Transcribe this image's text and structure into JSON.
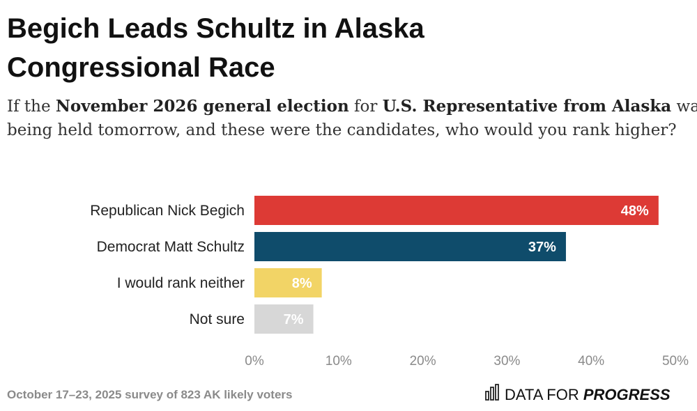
{
  "chart_data": {
    "type": "bar",
    "orientation": "horizontal",
    "title_lines": [
      "Begich Leads Schultz in Alaska",
      "Congressional Race"
    ],
    "subtitle_lines": [
      [
        {
          "text": "If the ",
          "bold": false
        },
        {
          "text": "November 2026 general election",
          "bold": true
        },
        {
          "text": " for ",
          "bold": false
        },
        {
          "text": "U.S. Representative from Alaska",
          "bold": true
        },
        {
          "text": " was",
          "bold": false
        }
      ],
      [
        {
          "text": "being held tomorrow, and these were the candidates, who would you rank higher?",
          "bold": false
        }
      ]
    ],
    "categories": [
      "Republican Nick Begich",
      "Democrat Matt Schultz",
      "I would rank neither",
      "Not sure"
    ],
    "values": [
      48,
      37,
      8,
      7
    ],
    "value_labels": [
      "48%",
      "37%",
      "8%",
      "7%"
    ],
    "colors": [
      "#dd3a35",
      "#0f4c6b",
      "#f2d466",
      "#d7d7d7"
    ],
    "xlim": [
      0,
      50
    ],
    "xticks": [
      {
        "value": 0,
        "label": "0%"
      },
      {
        "value": 10,
        "label": "10%"
      },
      {
        "value": 20,
        "label": "20%"
      },
      {
        "value": 30,
        "label": "30%"
      },
      {
        "value": 40,
        "label": "40%"
      },
      {
        "value": 50,
        "label": "50%"
      }
    ],
    "grid": false,
    "source": "October 17–23, 2025 survey of 823 AK likely voters",
    "brand": [
      {
        "text": "DATA FOR ",
        "bold": false
      },
      {
        "text": "PROGRESS",
        "bold": true
      }
    ]
  }
}
